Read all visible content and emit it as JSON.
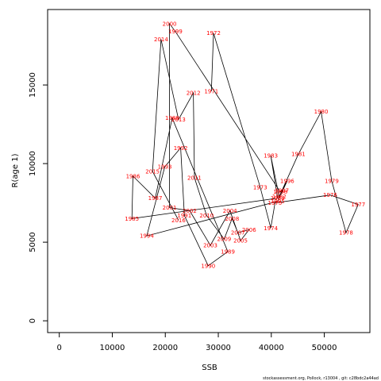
{
  "chart_data": {
    "type": "line",
    "xlabel": "SSB",
    "ylabel": "R(age 1)",
    "xlim": [
      -2200,
      58600
    ],
    "ylim": [
      -750,
      19800
    ],
    "x_ticks": [
      0,
      10000,
      20000,
      30000,
      40000,
      50000
    ],
    "y_ticks": [
      0,
      5000,
      10000,
      15000
    ],
    "x_tick_labels": [
      "0",
      "10000",
      "20000",
      "30000",
      "40000",
      "50000"
    ],
    "y_tick_labels": [
      "0",
      "5000",
      "10000",
      "15000"
    ],
    "line_color": "#000000",
    "label_color": "#ff0000",
    "points": [
      {
        "year": "1971",
        "x": 28700,
        "y": 14600
      },
      {
        "year": "1972",
        "x": 29100,
        "y": 18300
      },
      {
        "year": "1973",
        "x": 37900,
        "y": 8500
      },
      {
        "year": "1974",
        "x": 39900,
        "y": 5900
      },
      {
        "year": "1975",
        "x": 40700,
        "y": 7500
      },
      {
        "year": "1976",
        "x": 51100,
        "y": 8000
      },
      {
        "year": "1977",
        "x": 56400,
        "y": 7400
      },
      {
        "year": "1978",
        "x": 54100,
        "y": 5600
      },
      {
        "year": "1979",
        "x": 51400,
        "y": 8900
      },
      {
        "year": "1980",
        "x": 49400,
        "y": 13300
      },
      {
        "year": "1981",
        "x": 45100,
        "y": 10600
      },
      {
        "year": "1982",
        "x": 41500,
        "y": 7900
      },
      {
        "year": "1983",
        "x": 39900,
        "y": 10500
      },
      {
        "year": "1984",
        "x": 41200,
        "y": 7800
      },
      {
        "year": "1985",
        "x": 13700,
        "y": 6500
      },
      {
        "year": "1986",
        "x": 13900,
        "y": 9200
      },
      {
        "year": "1987",
        "x": 18100,
        "y": 7800
      },
      {
        "year": "1988",
        "x": 21300,
        "y": 12900
      },
      {
        "year": "1989",
        "x": 31800,
        "y": 4400
      },
      {
        "year": "1990",
        "x": 28100,
        "y": 3500
      },
      {
        "year": "1991",
        "x": 23600,
        "y": 6700
      },
      {
        "year": "1992",
        "x": 22900,
        "y": 11000
      },
      {
        "year": "1993",
        "x": 19900,
        "y": 9800
      },
      {
        "year": "1994",
        "x": 16500,
        "y": 5400
      },
      {
        "year": "1995",
        "x": 41200,
        "y": 7600
      },
      {
        "year": "1996",
        "x": 43000,
        "y": 8900
      },
      {
        "year": "1997",
        "x": 42000,
        "y": 8300
      },
      {
        "year": "1998",
        "x": 41700,
        "y": 8200
      },
      {
        "year": "1999",
        "x": 21900,
        "y": 18400
      },
      {
        "year": "2000",
        "x": 20800,
        "y": 18900
      },
      {
        "year": "2001",
        "x": 20800,
        "y": 7200
      },
      {
        "year": "2002",
        "x": 24600,
        "y": 7000
      },
      {
        "year": "2003",
        "x": 28500,
        "y": 4800
      },
      {
        "year": "2004",
        "x": 32200,
        "y": 7000
      },
      {
        "year": "2005",
        "x": 34200,
        "y": 5100
      },
      {
        "year": "2006",
        "x": 35800,
        "y": 5800
      },
      {
        "year": "2007",
        "x": 33700,
        "y": 5600
      },
      {
        "year": "2008",
        "x": 32600,
        "y": 6500
      },
      {
        "year": "2009",
        "x": 31100,
        "y": 5200
      },
      {
        "year": "2010",
        "x": 27800,
        "y": 6700
      },
      {
        "year": "2011",
        "x": 25500,
        "y": 9100
      },
      {
        "year": "2012",
        "x": 25300,
        "y": 14500
      },
      {
        "year": "2013",
        "x": 22500,
        "y": 12800
      },
      {
        "year": "2014",
        "x": 19200,
        "y": 17900
      },
      {
        "year": "2015",
        "x": 17600,
        "y": 9500
      },
      {
        "year": "2016",
        "x": 22500,
        "y": 6400
      }
    ]
  },
  "footer": "stockassessment.org, Pollock, r13004 ,  git: c28bdc2a44ad"
}
